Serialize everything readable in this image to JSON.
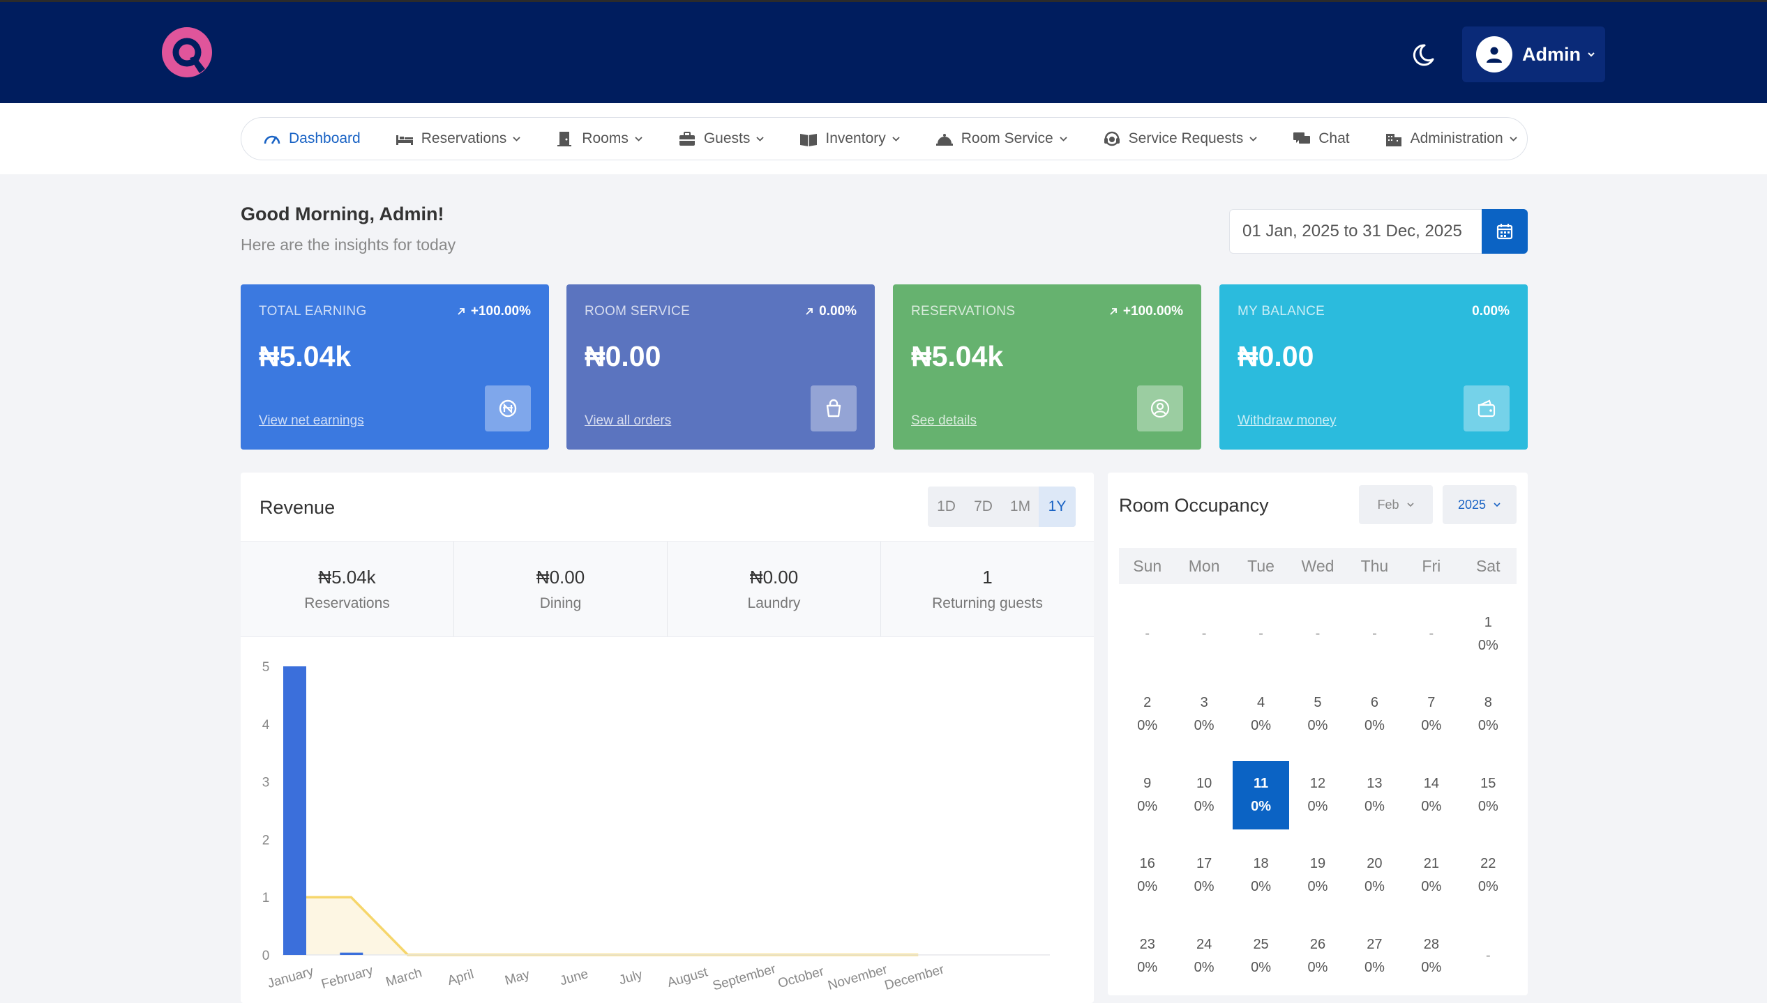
{
  "header": {
    "admin_label": "Admin"
  },
  "nav": [
    {
      "label": "Dashboard",
      "icon": "speedometer-icon",
      "active": true,
      "dropdown": false
    },
    {
      "label": "Reservations",
      "icon": "bed-icon",
      "dropdown": true
    },
    {
      "label": "Rooms",
      "icon": "door-icon",
      "dropdown": true
    },
    {
      "label": "Guests",
      "icon": "briefcase-icon",
      "dropdown": true
    },
    {
      "label": "Inventory",
      "icon": "book-icon",
      "dropdown": true
    },
    {
      "label": "Room Service",
      "icon": "bell-icon",
      "dropdown": true
    },
    {
      "label": "Service Requests",
      "icon": "headset-icon",
      "dropdown": true
    },
    {
      "label": "Chat",
      "icon": "chat-icon",
      "dropdown": false
    },
    {
      "label": "Administration",
      "icon": "building-icon",
      "dropdown": true
    }
  ],
  "greeting": {
    "title": "Good Morning, Admin!",
    "subtitle": "Here are the insights for today"
  },
  "date_range": "01 Jan, 2025 to 31 Dec, 2025",
  "cards": [
    {
      "title": "TOTAL EARNING",
      "change": "+100.00%",
      "arrow": true,
      "value": "₦5.04k",
      "link": "View net earnings",
      "icon": "naira-coin-icon",
      "color": "#3b79e0"
    },
    {
      "title": "ROOM SERVICE",
      "change": "0.00%",
      "arrow": true,
      "value": "₦0.00",
      "link": "View all orders",
      "icon": "shopping-bag-icon",
      "color": "#5b74bf"
    },
    {
      "title": "RESERVATIONS",
      "change": "+100.00%",
      "arrow": true,
      "value": "₦5.04k",
      "link": "See details",
      "icon": "user-circle-icon",
      "color": "#66b26f"
    },
    {
      "title": "MY BALANCE",
      "change": "0.00%",
      "arrow": false,
      "value": "₦0.00",
      "link": "Withdraw money",
      "icon": "wallet-icon",
      "color": "#2bbbdd"
    }
  ],
  "revenue": {
    "title": "Revenue",
    "tabs": [
      "1D",
      "7D",
      "1M",
      "1Y"
    ],
    "active_tab": "1Y",
    "stats": [
      {
        "value": "₦5.04k",
        "label": "Reservations"
      },
      {
        "value": "₦0.00",
        "label": "Dining"
      },
      {
        "value": "₦0.00",
        "label": "Laundry"
      },
      {
        "value": "1",
        "label": "Returning guests"
      }
    ]
  },
  "chart_data": {
    "type": "bar",
    "categories": [
      "January",
      "February",
      "March",
      "April",
      "May",
      "June",
      "July",
      "August",
      "September",
      "October",
      "November",
      "December"
    ],
    "series": [
      {
        "kind": "bar",
        "color": "#3b6fdb",
        "values": [
          5,
          0.04,
          0,
          0,
          0,
          0,
          0,
          0,
          0,
          0,
          0,
          0
        ]
      },
      {
        "kind": "area",
        "color": "#f6d66b",
        "values": [
          1,
          1,
          0,
          0,
          0,
          0,
          0,
          0,
          0,
          0,
          0,
          0
        ]
      }
    ],
    "ylim": [
      0,
      5
    ],
    "yticks": [
      0,
      1,
      2,
      3,
      4,
      5
    ],
    "grid": false,
    "legend": "none"
  },
  "occupancy": {
    "title": "Room Occupancy",
    "month": "Feb",
    "year": "2025",
    "weekdays": [
      "Sun",
      "Mon",
      "Tue",
      "Wed",
      "Thu",
      "Fri",
      "Sat"
    ],
    "days": [
      {
        "d": "-",
        "p": ""
      },
      {
        "d": "-",
        "p": ""
      },
      {
        "d": "-",
        "p": ""
      },
      {
        "d": "-",
        "p": ""
      },
      {
        "d": "-",
        "p": ""
      },
      {
        "d": "-",
        "p": ""
      },
      {
        "d": "1",
        "p": "0%"
      },
      {
        "d": "2",
        "p": "0%"
      },
      {
        "d": "3",
        "p": "0%"
      },
      {
        "d": "4",
        "p": "0%"
      },
      {
        "d": "5",
        "p": "0%"
      },
      {
        "d": "6",
        "p": "0%"
      },
      {
        "d": "7",
        "p": "0%"
      },
      {
        "d": "8",
        "p": "0%"
      },
      {
        "d": "9",
        "p": "0%"
      },
      {
        "d": "10",
        "p": "0%"
      },
      {
        "d": "11",
        "p": "0%",
        "today": true
      },
      {
        "d": "12",
        "p": "0%"
      },
      {
        "d": "13",
        "p": "0%"
      },
      {
        "d": "14",
        "p": "0%"
      },
      {
        "d": "15",
        "p": "0%"
      },
      {
        "d": "16",
        "p": "0%"
      },
      {
        "d": "17",
        "p": "0%"
      },
      {
        "d": "18",
        "p": "0%"
      },
      {
        "d": "19",
        "p": "0%"
      },
      {
        "d": "20",
        "p": "0%"
      },
      {
        "d": "21",
        "p": "0%"
      },
      {
        "d": "22",
        "p": "0%"
      },
      {
        "d": "23",
        "p": "0%"
      },
      {
        "d": "24",
        "p": "0%"
      },
      {
        "d": "25",
        "p": "0%"
      },
      {
        "d": "26",
        "p": "0%"
      },
      {
        "d": "27",
        "p": "0%"
      },
      {
        "d": "28",
        "p": "0%"
      },
      {
        "d": "-",
        "p": ""
      }
    ]
  }
}
